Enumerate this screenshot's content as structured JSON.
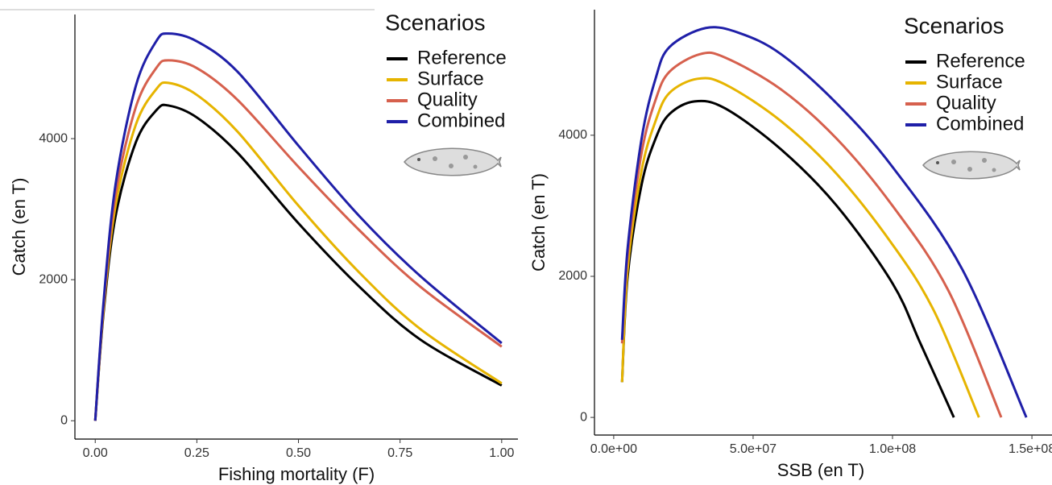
{
  "chart_data": [
    {
      "type": "line",
      "x_label": "Fishing mortality (F)",
      "y_label": "Catch (en T)",
      "legend_title": "Scenarios",
      "x": [
        0,
        0.02,
        0.05,
        0.1,
        0.15,
        0.18,
        0.25,
        0.35,
        0.5,
        0.65,
        0.8,
        1.0
      ],
      "series": [
        {
          "name": "Reference",
          "color": "#000000",
          "values": [
            0,
            1500,
            2900,
            3950,
            4400,
            4470,
            4300,
            3800,
            2800,
            1900,
            1150,
            500
          ]
        },
        {
          "name": "Surface",
          "color": "#e6b400",
          "values": [
            0,
            1550,
            3050,
            4200,
            4700,
            4790,
            4620,
            4100,
            3050,
            2100,
            1300,
            530
          ]
        },
        {
          "name": "Quality",
          "color": "#d6604d",
          "values": [
            0,
            1600,
            3200,
            4450,
            5000,
            5110,
            5000,
            4550,
            3600,
            2700,
            1900,
            1050
          ]
        },
        {
          "name": "Combined",
          "color": "#1f1fa8",
          "values": [
            0,
            1650,
            3350,
            4750,
            5380,
            5490,
            5380,
            4950,
            3900,
            2900,
            2050,
            1100
          ]
        }
      ],
      "xlim": [
        -0.05,
        1.04
      ],
      "ylim": [
        -260,
        5760
      ],
      "xticks": [
        {
          "value": 0,
          "label": "0.00"
        },
        {
          "value": 0.25,
          "label": "0.25"
        },
        {
          "value": 0.5,
          "label": "0.50"
        },
        {
          "value": 0.75,
          "label": "0.75"
        },
        {
          "value": 1,
          "label": "1.00"
        }
      ],
      "yticks": [
        0,
        2000,
        4000
      ]
    },
    {
      "type": "line",
      "x_label": "SSB (en T)",
      "y_label": "Catch (en T)",
      "legend_title": "Scenarios",
      "series": [
        {
          "name": "Reference",
          "color": "#000000",
          "x": [
            3000000,
            5000000,
            10000000,
            15000000,
            20000000,
            29000000,
            40000000,
            60000000,
            80000000,
            100000000,
            110000000,
            122000000
          ],
          "values": [
            500,
            2000,
            3300,
            3950,
            4300,
            4480,
            4380,
            3800,
            3000,
            1900,
            1050,
            0
          ]
        },
        {
          "name": "Surface",
          "color": "#e6b400",
          "x": [
            3000000,
            5000000,
            10000000,
            15000000,
            20000000,
            30000000,
            40000000,
            60000000,
            80000000,
            100000000,
            115000000,
            131000000
          ],
          "values": [
            500,
            2100,
            3500,
            4200,
            4600,
            4800,
            4720,
            4200,
            3450,
            2450,
            1500,
            0
          ]
        },
        {
          "name": "Quality",
          "color": "#d6604d",
          "x": [
            3000000,
            5000000,
            10000000,
            15000000,
            20000000,
            31000000,
            40000000,
            60000000,
            80000000,
            100000000,
            120000000,
            139000000
          ],
          "values": [
            1050,
            2300,
            3750,
            4500,
            4900,
            5150,
            5100,
            4650,
            3950,
            3000,
            1800,
            0
          ]
        },
        {
          "name": "Combined",
          "color": "#1f1fa8",
          "x": [
            3000000,
            5000000,
            10000000,
            15000000,
            20000000,
            33000000,
            45000000,
            60000000,
            80000000,
            100000000,
            125000000,
            148000000
          ],
          "values": [
            1100,
            2400,
            3950,
            4800,
            5250,
            5520,
            5450,
            5150,
            4450,
            3550,
            2100,
            0
          ]
        }
      ],
      "xlim": [
        -6900000,
        157200000
      ],
      "ylim": [
        -250,
        5780
      ],
      "xticks": [
        {
          "value": 0,
          "label": "0.0e+00"
        },
        {
          "value": 50000000,
          "label": "5.0e+07"
        },
        {
          "value": 100000000,
          "label": "1.0e+08"
        },
        {
          "value": 150000000,
          "label": "1.5e+08"
        }
      ],
      "yticks": [
        0,
        2000,
        4000
      ]
    }
  ]
}
